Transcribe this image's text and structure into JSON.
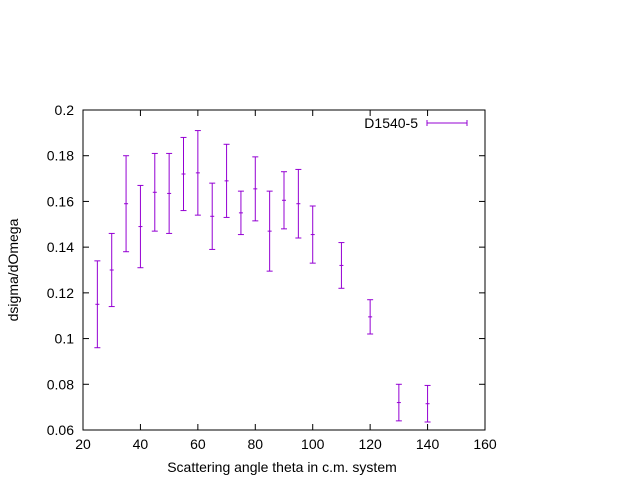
{
  "chart_data": {
    "type": "scatter",
    "xlabel": "Scattering angle theta in c.m. system",
    "ylabel": "dsigma/dOmega",
    "xlim": [
      20,
      160
    ],
    "ylim": [
      0.06,
      0.2
    ],
    "xticks": [
      20,
      40,
      60,
      80,
      100,
      120,
      140,
      160
    ],
    "yticks": [
      0.06,
      0.08,
      0.1,
      0.12,
      0.14,
      0.16,
      0.18,
      0.2
    ],
    "ytick_labels": [
      "0.06",
      "0.08",
      "0.1",
      "0.12",
      "0.14",
      "0.16",
      "0.18",
      "0.2"
    ],
    "grid": false,
    "legend": {
      "position": "top-right"
    },
    "series": [
      {
        "name": "D1540-5",
        "color": "#9400d3",
        "style": "yerrorbars",
        "points": [
          {
            "x": 25,
            "y": 0.115,
            "err": 0.019
          },
          {
            "x": 30,
            "y": 0.13,
            "err": 0.016
          },
          {
            "x": 35,
            "y": 0.159,
            "err": 0.021
          },
          {
            "x": 40,
            "y": 0.149,
            "err": 0.018
          },
          {
            "x": 45,
            "y": 0.164,
            "err": 0.017
          },
          {
            "x": 50,
            "y": 0.1635,
            "err": 0.0175
          },
          {
            "x": 55,
            "y": 0.172,
            "err": 0.016
          },
          {
            "x": 60,
            "y": 0.1725,
            "err": 0.0185
          },
          {
            "x": 65,
            "y": 0.1535,
            "err": 0.0145
          },
          {
            "x": 70,
            "y": 0.169,
            "err": 0.016
          },
          {
            "x": 75,
            "y": 0.155,
            "err": 0.0095
          },
          {
            "x": 80,
            "y": 0.1655,
            "err": 0.014
          },
          {
            "x": 85,
            "y": 0.147,
            "err": 0.0175
          },
          {
            "x": 90,
            "y": 0.1605,
            "err": 0.0125
          },
          {
            "x": 95,
            "y": 0.159,
            "err": 0.015
          },
          {
            "x": 100,
            "y": 0.1455,
            "err": 0.0125
          },
          {
            "x": 110,
            "y": 0.132,
            "err": 0.01
          },
          {
            "x": 120,
            "y": 0.1095,
            "err": 0.0075
          },
          {
            "x": 130,
            "y": 0.072,
            "err": 0.008
          },
          {
            "x": 140,
            "y": 0.0715,
            "err": 0.008
          }
        ]
      }
    ]
  }
}
